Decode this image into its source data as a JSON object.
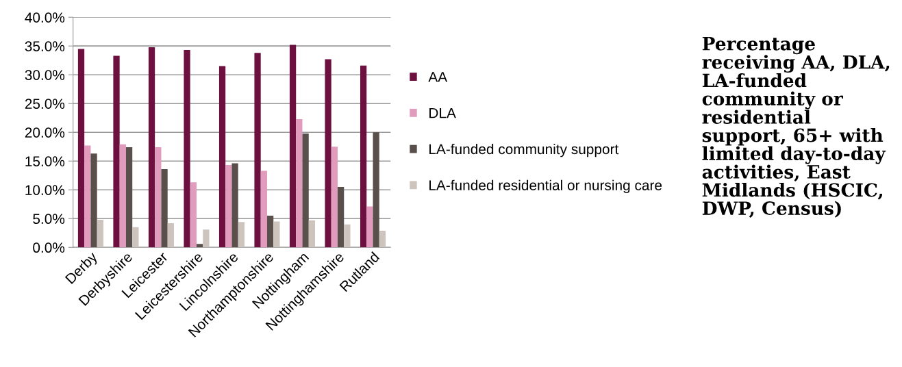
{
  "chart_data": {
    "type": "bar",
    "title": "Percentage receiving AA, DLA, LA-funded community or residential support, 65+ with limited day-to-day activities, East Midlands (HSCIC, DWP, Census)",
    "categories": [
      "Derby",
      "Derbyshire",
      "Leicester",
      "Leicestershire",
      "Lincolnshire",
      "Northamptonshire",
      "Nottingham",
      "Nottinghamshire",
      "Rutland"
    ],
    "series": [
      {
        "name": "AA",
        "color": "#6d0f3f",
        "values": [
          34.5,
          33.3,
          34.8,
          34.3,
          31.5,
          33.8,
          35.2,
          32.7,
          31.6
        ]
      },
      {
        "name": "DLA",
        "color": "#e09bbd",
        "values": [
          17.7,
          17.9,
          17.4,
          11.3,
          14.3,
          13.3,
          22.3,
          17.5,
          7.1
        ]
      },
      {
        "name": "LA-funded community support",
        "color": "#5a504b",
        "values": [
          16.3,
          17.4,
          13.6,
          0.6,
          14.6,
          5.5,
          19.8,
          10.5,
          20.0
        ]
      },
      {
        "name": "LA-funded residential or nursing care",
        "color": "#cdc4be",
        "values": [
          4.8,
          3.5,
          4.2,
          3.1,
          4.4,
          4.5,
          4.7,
          4.0,
          2.9
        ]
      }
    ],
    "ylim": [
      0,
      40
    ],
    "yticks": [
      {
        "value": 0,
        "label": "0.0%"
      },
      {
        "value": 5,
        "label": "5.0%"
      },
      {
        "value": 10,
        "label": "10.0%"
      },
      {
        "value": 15,
        "label": "15.0%"
      },
      {
        "value": 20,
        "label": "20.0%"
      },
      {
        "value": 25,
        "label": "25.0%"
      },
      {
        "value": 30,
        "label": "30.0%"
      },
      {
        "value": 35,
        "label": "35.0%"
      },
      {
        "value": 40,
        "label": "40.0%"
      }
    ],
    "grid": "y",
    "legend": "right"
  }
}
